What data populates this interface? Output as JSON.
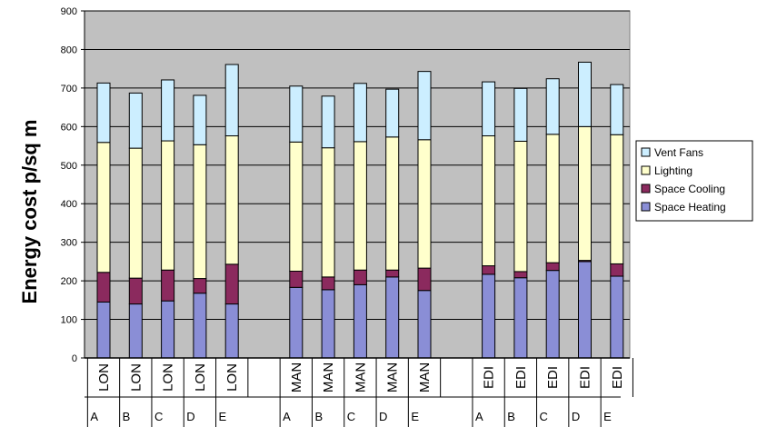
{
  "chart_data": {
    "type": "bar",
    "stacked": true,
    "title": "",
    "xlabel": "",
    "ylabel": "Energy cost p/sq m",
    "ylim": [
      0,
      900
    ],
    "yticks": [
      0,
      100,
      200,
      300,
      400,
      500,
      600,
      700,
      800,
      900
    ],
    "grid": true,
    "legend_position": "right",
    "groups": [
      {
        "city": "LON",
        "letters": [
          "A",
          "B",
          "C",
          "D",
          "E"
        ]
      },
      {
        "city": "MAN",
        "letters": [
          "A",
          "B",
          "C",
          "D",
          "E"
        ]
      },
      {
        "city": "EDI",
        "letters": [
          "A",
          "B",
          "C",
          "D",
          "E"
        ]
      }
    ],
    "categories": [
      "LON A",
      "LON B",
      "LON C",
      "LON D",
      "LON E",
      "MAN A",
      "MAN B",
      "MAN C",
      "MAN D",
      "MAN E",
      "EDI A",
      "EDI B",
      "EDI C",
      "EDI D",
      "EDI E"
    ],
    "series": [
      {
        "name": "Space Heating",
        "color": "#8a8ed6",
        "values": [
          145,
          140,
          148,
          168,
          140,
          183,
          177,
          190,
          210,
          175,
          217,
          208,
          227,
          250,
          212
        ]
      },
      {
        "name": "Space Cooling",
        "color": "#8b2a5e",
        "values": [
          77,
          67,
          80,
          38,
          103,
          42,
          33,
          38,
          18,
          58,
          22,
          16,
          20,
          3,
          32
        ]
      },
      {
        "name": "Lighting",
        "color": "#ffffcc",
        "values": [
          337,
          337,
          335,
          347,
          333,
          335,
          335,
          333,
          345,
          333,
          337,
          338,
          333,
          347,
          335
        ]
      },
      {
        "name": "Vent Fans",
        "color": "#cceeff",
        "values": [
          154,
          143,
          158,
          128,
          185,
          145,
          134,
          151,
          124,
          177,
          140,
          137,
          144,
          167,
          130
        ]
      }
    ],
    "legend_order": [
      "Vent Fans",
      "Lighting",
      "Space Cooling",
      "Space Heating"
    ],
    "plot_background": "#c0c0c0"
  }
}
